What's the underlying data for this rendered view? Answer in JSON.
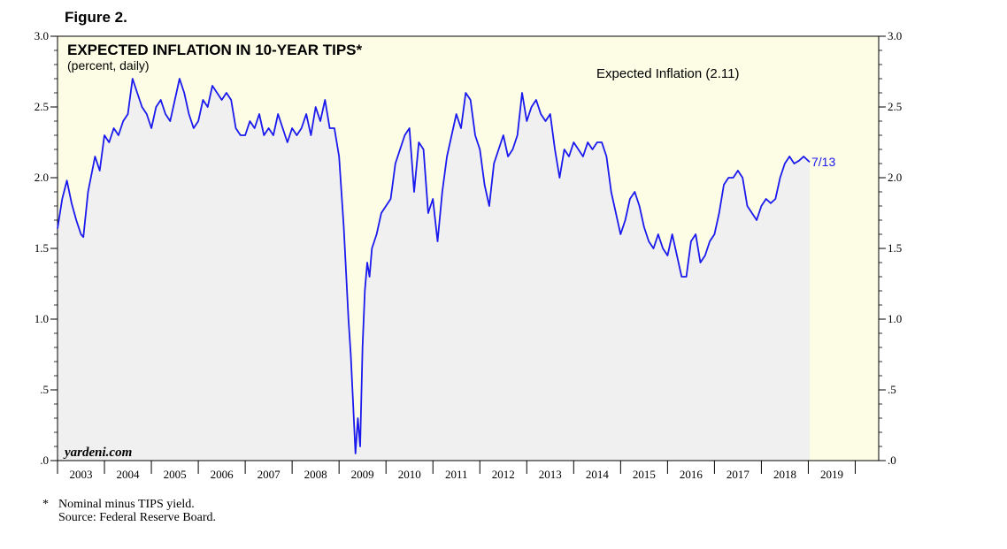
{
  "figure_label": "Figure 2.",
  "footnotes": {
    "asterisk": "*",
    "note": "Nominal minus TIPS yield.",
    "source": "Source: Federal Reserve Board."
  },
  "colors": {
    "background": "#fdfde6",
    "plot_fill": "#f0f0f0",
    "series_line": "#1a1aee",
    "text": "#000000"
  },
  "chart_data": {
    "type": "line",
    "title": "EXPECTED INFLATION IN 10-YEAR TIPS*",
    "subtitle": "(percent, daily)",
    "watermark": "yardeni.com",
    "xlabel": "",
    "ylabel": "",
    "xlim": [
      2002.5,
      2020.0
    ],
    "ylim": [
      0.0,
      3.0
    ],
    "y_ticks": [
      ".0",
      ".5",
      "1.0",
      "1.5",
      "2.0",
      "2.5",
      "3.0"
    ],
    "x_ticks": [
      "2003",
      "2004",
      "2005",
      "2006",
      "2007",
      "2008",
      "2009",
      "2010",
      "2011",
      "2012",
      "2013",
      "2014",
      "2015",
      "2016",
      "2017",
      "2018",
      "2019"
    ],
    "grid": false,
    "series": [
      {
        "name": "Expected Inflation (2.11)",
        "end_label": "7/13",
        "x": [
          2002.5,
          2002.6,
          2002.7,
          2002.8,
          2002.9,
          2003.0,
          2003.05,
          2003.15,
          2003.3,
          2003.4,
          2003.5,
          2003.6,
          2003.7,
          2003.8,
          2003.9,
          2004.0,
          2004.1,
          2004.2,
          2004.3,
          2004.4,
          2004.5,
          2004.6,
          2004.7,
          2004.8,
          2004.9,
          2005.0,
          2005.1,
          2005.2,
          2005.3,
          2005.4,
          2005.5,
          2005.6,
          2005.7,
          2005.8,
          2005.9,
          2006.0,
          2006.1,
          2006.2,
          2006.3,
          2006.4,
          2006.5,
          2006.6,
          2006.7,
          2006.8,
          2006.9,
          2007.0,
          2007.1,
          2007.2,
          2007.3,
          2007.4,
          2007.5,
          2007.6,
          2007.7,
          2007.8,
          2007.9,
          2008.0,
          2008.1,
          2008.2,
          2008.3,
          2008.4,
          2008.5,
          2008.6,
          2008.7,
          2008.75,
          2008.8,
          2008.85,
          2008.9,
          2008.95,
          2009.0,
          2009.05,
          2009.1,
          2009.15,
          2009.2,
          2009.3,
          2009.4,
          2009.5,
          2009.6,
          2009.7,
          2009.8,
          2009.9,
          2010.0,
          2010.1,
          2010.2,
          2010.3,
          2010.4,
          2010.5,
          2010.6,
          2010.7,
          2010.8,
          2010.9,
          2011.0,
          2011.1,
          2011.2,
          2011.3,
          2011.4,
          2011.5,
          2011.6,
          2011.7,
          2011.8,
          2011.9,
          2012.0,
          2012.1,
          2012.2,
          2012.3,
          2012.4,
          2012.5,
          2012.6,
          2012.7,
          2012.8,
          2012.9,
          2013.0,
          2013.1,
          2013.2,
          2013.3,
          2013.4,
          2013.5,
          2013.6,
          2013.7,
          2013.8,
          2013.9,
          2014.0,
          2014.1,
          2014.2,
          2014.3,
          2014.4,
          2014.5,
          2014.6,
          2014.7,
          2014.8,
          2014.9,
          2015.0,
          2015.1,
          2015.2,
          2015.3,
          2015.4,
          2015.5,
          2015.6,
          2015.7,
          2015.8,
          2015.9,
          2016.0,
          2016.1,
          2016.2,
          2016.3,
          2016.4,
          2016.5,
          2016.6,
          2016.7,
          2016.8,
          2016.9,
          2017.0,
          2017.1,
          2017.2,
          2017.3,
          2017.4,
          2017.5,
          2017.6,
          2017.7,
          2017.8,
          2017.9,
          2018.0,
          2018.1,
          2018.2,
          2018.3,
          2018.4,
          2018.53
        ],
        "y": [
          1.64,
          1.85,
          1.98,
          1.82,
          1.7,
          1.6,
          1.58,
          1.9,
          2.15,
          2.05,
          2.3,
          2.25,
          2.35,
          2.3,
          2.4,
          2.45,
          2.7,
          2.6,
          2.5,
          2.45,
          2.35,
          2.5,
          2.55,
          2.45,
          2.4,
          2.55,
          2.7,
          2.6,
          2.45,
          2.35,
          2.4,
          2.55,
          2.5,
          2.65,
          2.6,
          2.55,
          2.6,
          2.55,
          2.35,
          2.3,
          2.3,
          2.4,
          2.35,
          2.45,
          2.3,
          2.35,
          2.3,
          2.45,
          2.35,
          2.25,
          2.35,
          2.3,
          2.35,
          2.45,
          2.3,
          2.5,
          2.4,
          2.55,
          2.35,
          2.35,
          2.15,
          1.65,
          1.0,
          0.75,
          0.4,
          0.05,
          0.3,
          0.1,
          0.8,
          1.2,
          1.4,
          1.3,
          1.5,
          1.6,
          1.75,
          1.8,
          1.85,
          2.1,
          2.2,
          2.3,
          2.35,
          1.9,
          2.25,
          2.2,
          1.75,
          1.85,
          1.55,
          1.9,
          2.15,
          2.3,
          2.45,
          2.35,
          2.6,
          2.55,
          2.3,
          2.2,
          1.95,
          1.8,
          2.1,
          2.2,
          2.3,
          2.15,
          2.2,
          2.3,
          2.6,
          2.4,
          2.5,
          2.55,
          2.45,
          2.4,
          2.45,
          2.2,
          2.0,
          2.2,
          2.15,
          2.25,
          2.2,
          2.15,
          2.25,
          2.2,
          2.25,
          2.25,
          2.15,
          1.9,
          1.75,
          1.6,
          1.7,
          1.85,
          1.9,
          1.8,
          1.65,
          1.55,
          1.5,
          1.6,
          1.5,
          1.45,
          1.6,
          1.45,
          1.3,
          1.3,
          1.55,
          1.6,
          1.4,
          1.45,
          1.55,
          1.6,
          1.75,
          1.95,
          2.0,
          2.0,
          2.05,
          2.0,
          1.8,
          1.75,
          1.7,
          1.8,
          1.85,
          1.82,
          1.85,
          2.0,
          2.1,
          2.15,
          2.1,
          2.12,
          2.15,
          2.11
        ]
      }
    ]
  }
}
